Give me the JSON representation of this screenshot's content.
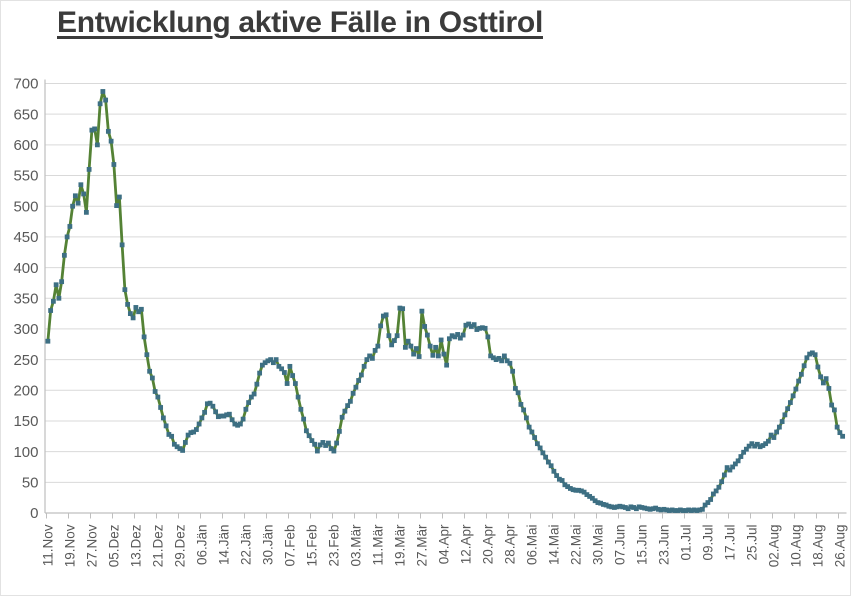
{
  "title": "Entwicklung aktive Fälle in Osttirol",
  "chart_data": {
    "type": "line",
    "title": "Entwicklung aktive Fälle in Osttirol",
    "series_name": "aktive Fälle",
    "xlabel": "",
    "ylabel": "",
    "ylim": [
      0,
      700
    ],
    "y_ticks": [
      0,
      50,
      100,
      150,
      200,
      250,
      300,
      350,
      400,
      450,
      500,
      550,
      600,
      650,
      700
    ],
    "grid": "horizontal",
    "legend_position": "none",
    "x_tick_interval_days": 8,
    "x_tick_labels": [
      "11.Nov",
      "19.Nov",
      "27.Nov",
      "05.Dez",
      "13.Dez",
      "21.Dez",
      "29.Dez",
      "06.Jän",
      "14.Jän",
      "22.Jän",
      "30.Jän",
      "07.Feb",
      "15.Feb",
      "23.Feb",
      "03.Mär",
      "11.Mär",
      "19.Mär",
      "27.Mär",
      "04.Apr",
      "12.Apr",
      "20.Apr",
      "28.Apr",
      "06.Mai",
      "14.Mai",
      "22.Mai",
      "30.Mai",
      "07.Jun",
      "15.Jun",
      "23.Jun",
      "01.Jul",
      "09.Jul",
      "17.Jul",
      "25.Jul",
      "02.Aug",
      "10.Aug",
      "18.Aug",
      "26.Aug"
    ],
    "values": [
      280,
      330,
      345,
      372,
      350,
      377,
      420,
      450,
      467,
      500,
      517,
      505,
      535,
      520,
      490,
      560,
      624,
      626,
      600,
      667,
      687,
      673,
      622,
      606,
      568,
      501,
      515,
      437,
      364,
      340,
      325,
      318,
      335,
      328,
      332,
      287,
      258,
      231,
      220,
      198,
      189,
      172,
      155,
      142,
      128,
      125,
      112,
      108,
      105,
      102,
      115,
      127,
      131,
      132,
      136,
      145,
      155,
      164,
      178,
      179,
      174,
      165,
      157,
      158,
      158,
      160,
      161,
      152,
      145,
      143,
      145,
      153,
      169,
      180,
      189,
      194,
      210,
      228,
      241,
      245,
      248,
      250,
      245,
      250,
      239,
      235,
      229,
      211,
      239,
      224,
      211,
      189,
      169,
      153,
      134,
      126,
      118,
      112,
      101,
      111,
      115,
      110,
      114,
      105,
      101,
      114,
      133,
      156,
      166,
      175,
      182,
      195,
      205,
      216,
      225,
      239,
      250,
      256,
      252,
      265,
      272,
      305,
      321,
      323,
      289,
      274,
      281,
      289,
      334,
      333,
      270,
      280,
      272,
      259,
      268,
      255,
      329,
      304,
      290,
      272,
      257,
      270,
      256,
      282,
      259,
      241,
      284,
      289,
      287,
      291,
      285,
      290,
      306,
      308,
      304,
      307,
      299,
      301,
      302,
      301,
      287,
      256,
      253,
      250,
      252,
      248,
      256,
      248,
      244,
      231,
      203,
      196,
      177,
      168,
      155,
      140,
      132,
      123,
      113,
      106,
      98,
      91,
      83,
      77,
      68,
      61,
      55,
      53,
      46,
      43,
      40,
      38,
      37,
      37,
      36,
      34,
      30,
      27,
      24,
      20,
      17,
      16,
      14,
      13,
      11,
      10,
      9,
      10,
      11,
      10,
      9,
      7,
      10,
      9,
      7,
      10,
      9,
      8,
      7,
      6,
      7,
      8,
      6,
      5,
      6,
      5,
      4,
      5,
      4,
      4,
      5,
      4,
      4,
      5,
      4,
      5,
      4,
      5,
      6,
      13,
      17,
      22,
      31,
      36,
      42,
      51,
      62,
      74,
      70,
      75,
      80,
      85,
      92,
      99,
      104,
      109,
      113,
      109,
      112,
      108,
      110,
      113,
      117,
      127,
      123,
      132,
      140,
      149,
      160,
      170,
      180,
      191,
      202,
      215,
      226,
      240,
      253,
      259,
      261,
      258,
      238,
      222,
      212,
      219,
      203,
      176,
      168,
      140,
      131,
      125
    ],
    "line_color": "#548235",
    "marker_color": "#3D6F83",
    "marker_shape": "square"
  },
  "style": {
    "grid_color": "#D9D9D9",
    "axis_color": "#BFBFBF",
    "tick_label_color": "#595959",
    "title_color": "#3B3B3B",
    "background": "#FFFFFF"
  }
}
